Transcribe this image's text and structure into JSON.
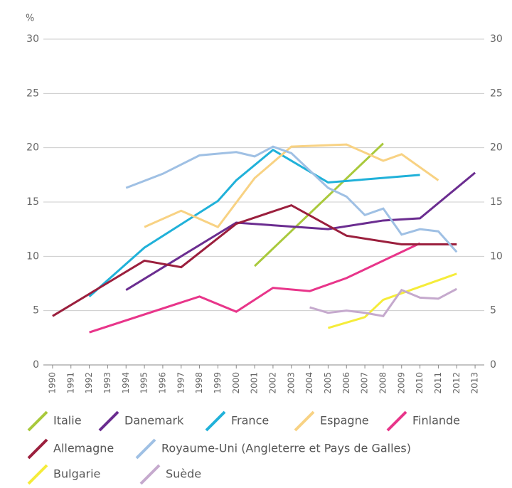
{
  "chart_data": {
    "type": "line",
    "y_unit": "%",
    "xlim": [
      1989.5,
      2013.5
    ],
    "xticks": [
      1990,
      1991,
      1992,
      1993,
      1994,
      1995,
      1996,
      1997,
      1998,
      1999,
      2000,
      2001,
      2002,
      2003,
      2004,
      2005,
      2006,
      2007,
      2008,
      2009,
      2010,
      2011,
      2012,
      2013
    ],
    "ylim": [
      0,
      30
    ],
    "yticks": [
      0,
      5,
      10,
      15,
      20,
      25,
      30
    ],
    "y2lim": [
      0,
      30
    ],
    "y2ticks": [
      0,
      5,
      10,
      15,
      20,
      25,
      30
    ],
    "grid": true,
    "legend": "bottom",
    "series": [
      {
        "name": "Italie",
        "color": "#a9c93c",
        "x": [
          2001,
          2008
        ],
        "values": [
          9.1,
          20.4
        ]
      },
      {
        "name": "Danemark",
        "color": "#6b2d90",
        "x": [
          1994,
          2000,
          2005,
          2008,
          2010,
          2013
        ],
        "values": [
          6.9,
          13.1,
          12.5,
          13.3,
          13.5,
          17.7
        ]
      },
      {
        "name": "France",
        "color": "#20b1d9",
        "x": [
          1992,
          1995,
          1999,
          2000,
          2002,
          2005,
          2010
        ],
        "values": [
          6.3,
          10.8,
          15.1,
          17.0,
          19.8,
          16.8,
          17.5
        ]
      },
      {
        "name": "Espagne",
        "color": "#f8d283",
        "x": [
          1995,
          1997,
          1999,
          2001,
          2003,
          2006,
          2008,
          2009,
          2011
        ],
        "values": [
          12.7,
          14.2,
          12.7,
          17.2,
          20.1,
          20.3,
          18.8,
          19.4,
          17.0
        ]
      },
      {
        "name": "Finlande",
        "color": "#e8358a",
        "x": [
          1992,
          1998,
          2000,
          2002,
          2004,
          2006,
          2010
        ],
        "values": [
          3.0,
          6.3,
          4.9,
          7.1,
          6.8,
          8.0,
          11.2
        ]
      },
      {
        "name": "Allemagne",
        "color": "#9b1f3d",
        "x": [
          1990,
          1995,
          1997,
          2000,
          2003,
          2006,
          2009,
          2012
        ],
        "values": [
          4.5,
          9.6,
          9.0,
          13.0,
          14.7,
          11.9,
          11.1,
          11.1
        ]
      },
      {
        "name": "Royaume-Uni (Angleterre et Pays de Galles)",
        "color": "#9fc0e4",
        "x": [
          1994,
          1996,
          1998,
          2000,
          2001,
          2002,
          2003,
          2005,
          2006,
          2007,
          2008,
          2009,
          2010,
          2011,
          2012
        ],
        "values": [
          16.3,
          17.6,
          19.3,
          19.6,
          19.2,
          20.1,
          19.5,
          16.3,
          15.5,
          13.8,
          14.4,
          12.0,
          12.5,
          12.3,
          10.4
        ]
      },
      {
        "name": "Bulgarie",
        "color": "#f5ec3a",
        "x": [
          2005,
          2007,
          2008,
          2012
        ],
        "values": [
          3.4,
          4.4,
          6.0,
          8.4
        ]
      },
      {
        "name": "Suède",
        "color": "#c5a9cd",
        "x": [
          2004,
          2005,
          2006,
          2007,
          2008,
          2009,
          2010,
          2011,
          2012
        ],
        "values": [
          5.3,
          4.8,
          5.0,
          4.8,
          4.5,
          6.9,
          6.2,
          6.1,
          7.0
        ]
      }
    ]
  }
}
